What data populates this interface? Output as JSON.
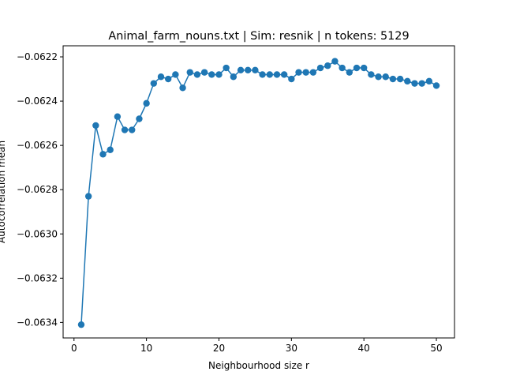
{
  "chart_data": {
    "type": "line",
    "title": "Animal_farm_nouns.txt | Sim: resnik | n tokens: 5129",
    "xlabel": "Neighbourhood size r",
    "ylabel": "Autocorrelation mean",
    "xlim": [
      -1.5,
      52.5
    ],
    "ylim": [
      -0.06347,
      -0.06215
    ],
    "xticks": [
      0,
      10,
      20,
      30,
      40,
      50
    ],
    "xtick_labels": [
      "0",
      "10",
      "20",
      "30",
      "40",
      "50"
    ],
    "yticks": [
      -0.0634,
      -0.0632,
      -0.063,
      -0.0628,
      -0.0626,
      -0.0624,
      -0.0622
    ],
    "ytick_labels": [
      "−0.0634",
      "−0.0632",
      "−0.0630",
      "−0.0628",
      "−0.0626",
      "−0.0624",
      "−0.0622"
    ],
    "grid": false,
    "line_color": "#1f77b4",
    "series": [
      {
        "x": [
          1,
          2,
          3,
          4,
          5,
          6,
          7,
          8,
          9,
          10,
          11,
          12,
          13,
          14,
          15,
          16,
          17,
          18,
          19,
          20,
          21,
          22,
          23,
          24,
          25,
          26,
          27,
          28,
          29,
          30,
          31,
          32,
          33,
          34,
          35,
          36,
          37,
          38,
          39,
          40,
          41,
          42,
          43,
          44,
          45,
          46,
          47,
          48,
          49,
          50
        ],
        "values": [
          -0.06341,
          -0.06283,
          -0.06251,
          -0.06264,
          -0.06262,
          -0.06247,
          -0.06253,
          -0.06253,
          -0.06248,
          -0.06241,
          -0.06232,
          -0.06229,
          -0.0623,
          -0.06228,
          -0.06234,
          -0.06227,
          -0.06228,
          -0.06227,
          -0.06228,
          -0.06228,
          -0.06225,
          -0.06229,
          -0.06226,
          -0.06226,
          -0.06226,
          -0.06228,
          -0.06228,
          -0.06228,
          -0.06228,
          -0.0623,
          -0.06227,
          -0.06227,
          -0.06227,
          -0.06225,
          -0.06224,
          -0.06222,
          -0.06225,
          -0.06227,
          -0.06225,
          -0.06225,
          -0.06228,
          -0.06229,
          -0.06229,
          -0.0623,
          -0.0623,
          -0.06231,
          -0.06232,
          -0.06232,
          -0.06231,
          -0.06233
        ]
      }
    ]
  }
}
